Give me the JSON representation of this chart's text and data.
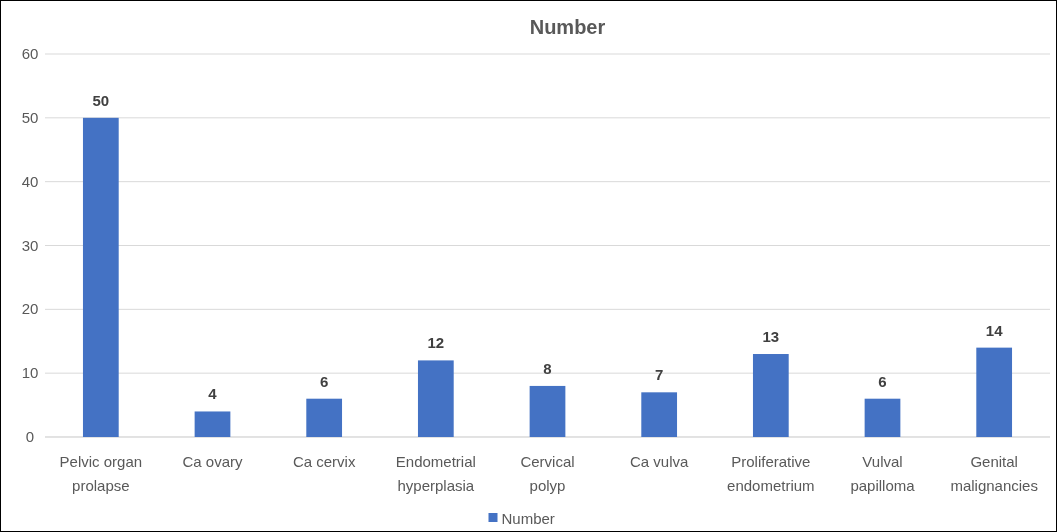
{
  "chart_data": {
    "type": "bar",
    "title": "Number",
    "categories": [
      "Pelvic organ prolapse",
      "Ca ovary",
      "Ca cervix",
      "Endometrial hyperplasia",
      "Cervical polyp",
      "Ca vulva",
      "Proliferative endometrium",
      "Vulval papilloma",
      "Genital malignancies"
    ],
    "series": [
      {
        "name": "Number",
        "color": "#4472c4",
        "values": [
          50,
          4,
          6,
          12,
          8,
          7,
          13,
          6,
          14
        ]
      }
    ],
    "ylim": [
      0,
      60
    ],
    "yticks": [
      0,
      10,
      20,
      30,
      40,
      50,
      60
    ],
    "grid": "y",
    "legend": "bottom",
    "data_labels": true
  }
}
